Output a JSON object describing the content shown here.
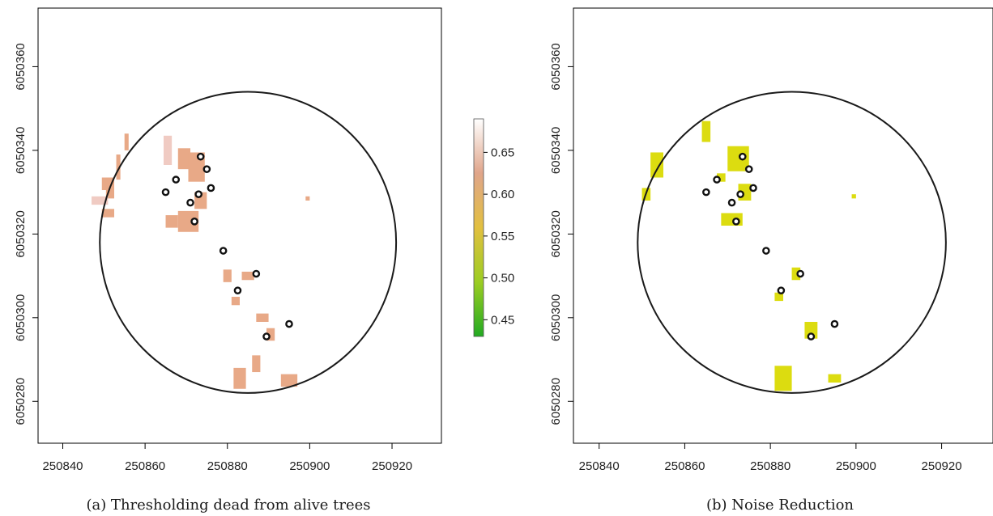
{
  "colors": {
    "raster_a": "#e8a987",
    "raster_a_light": "#f0cbc3",
    "raster_b": "#dcdc10",
    "circle": "#1a1a1a",
    "tree_marker": "#111111"
  },
  "colorbar": {
    "ticks": [
      "0.65",
      "0.60",
      "0.55",
      "0.50",
      "0.45"
    ],
    "range": [
      0.43,
      0.69
    ],
    "stops": [
      "#ffffff",
      "#e0a58a",
      "#e2c040",
      "#9ccd22",
      "#22aa22"
    ]
  },
  "chart_data": [
    {
      "type": "raster",
      "title": "(a) Thresholding dead from alive trees",
      "xlim": [
        250834,
        250932
      ],
      "ylim": [
        6050270,
        6050374
      ],
      "x_ticks": [
        "250840",
        "250860",
        "250880",
        "250900",
        "250920"
      ],
      "y_ticks": [
        "6050280",
        "6050300",
        "6050320",
        "6050340",
        "6050360"
      ],
      "plot_circle": {
        "center": [
          250885,
          6050318
        ],
        "radius": 36
      },
      "trees": [
        [
          250873.5,
          6050338.5
        ],
        [
          250875,
          6050335.5
        ],
        [
          250867.5,
          6050333
        ],
        [
          250876,
          6050331
        ],
        [
          250865,
          6050330
        ],
        [
          250873,
          6050329.5
        ],
        [
          250871,
          6050327.5
        ],
        [
          250872,
          6050323
        ],
        [
          250879,
          6050316
        ],
        [
          250887,
          6050310.5
        ],
        [
          250882.5,
          6050306.5
        ],
        [
          250895,
          6050298.5
        ],
        [
          250889.5,
          6050295.5
        ]
      ],
      "patches": [
        [
          250855.5,
          6050342,
          1,
          4
        ],
        [
          250853.5,
          6050336,
          1,
          6
        ],
        [
          250851.5,
          6050331,
          2,
          5
        ],
        [
          250849,
          6050328,
          4,
          2
        ],
        [
          250851,
          6050325,
          3,
          2
        ],
        [
          250851,
          6050332,
          3,
          3
        ],
        [
          250865.5,
          6050340,
          2,
          7
        ],
        [
          250869.5,
          6050338,
          3,
          5
        ],
        [
          250872.5,
          6050336,
          4,
          7
        ],
        [
          250870.5,
          6050323,
          5,
          5
        ],
        [
          250866.5,
          6050323,
          3,
          3
        ],
        [
          250873.5,
          6050328,
          3,
          4
        ],
        [
          250880,
          6050310,
          2,
          3
        ],
        [
          250885,
          6050310,
          3,
          2
        ],
        [
          250882,
          6050304,
          2,
          2
        ],
        [
          250888.5,
          6050300,
          3,
          2
        ],
        [
          250890.5,
          6050296,
          2,
          3
        ],
        [
          250887,
          6050289,
          2,
          4
        ],
        [
          250883,
          6050285.5,
          3,
          5
        ],
        [
          250895,
          6050285,
          4,
          3
        ],
        [
          250899.5,
          6050328.5,
          1,
          1
        ]
      ]
    },
    {
      "type": "raster",
      "title": "(b) Noise Reduction",
      "xlim": [
        250834,
        250932
      ],
      "ylim": [
        6050270,
        6050374
      ],
      "x_ticks": [
        "250840",
        "250860",
        "250880",
        "250900",
        "250920"
      ],
      "y_ticks": [
        "6050280",
        "6050300",
        "6050320",
        "6050340",
        "6050360"
      ],
      "plot_circle": {
        "center": [
          250885,
          6050318
        ],
        "radius": 36
      },
      "trees": [
        [
          250873.5,
          6050338.5
        ],
        [
          250875,
          6050335.5
        ],
        [
          250867.5,
          6050333
        ],
        [
          250876,
          6050331
        ],
        [
          250865,
          6050330
        ],
        [
          250873,
          6050329.5
        ],
        [
          250871,
          6050327.5
        ],
        [
          250872,
          6050323
        ],
        [
          250879,
          6050316
        ],
        [
          250887,
          6050310.5
        ],
        [
          250882.5,
          6050306.5
        ],
        [
          250895,
          6050298.5
        ],
        [
          250889.5,
          6050295.5
        ]
      ],
      "patches": [
        [
          250865,
          6050344.5,
          2,
          5
        ],
        [
          250872.5,
          6050338,
          5,
          6
        ],
        [
          250853.5,
          6050336.5,
          3,
          6
        ],
        [
          250851,
          6050329.5,
          2,
          3
        ],
        [
          250868.5,
          6050333.5,
          2,
          2
        ],
        [
          250871,
          6050323.5,
          5,
          3
        ],
        [
          250874,
          6050330,
          3,
          4
        ],
        [
          250882,
          6050305,
          2,
          2
        ],
        [
          250886,
          6050310.5,
          2,
          3
        ],
        [
          250889.5,
          6050297,
          3,
          4
        ],
        [
          250883,
          6050285.5,
          4,
          6
        ],
        [
          250895,
          6050285.5,
          3,
          2
        ],
        [
          250899.5,
          6050329,
          1,
          1
        ]
      ]
    }
  ]
}
